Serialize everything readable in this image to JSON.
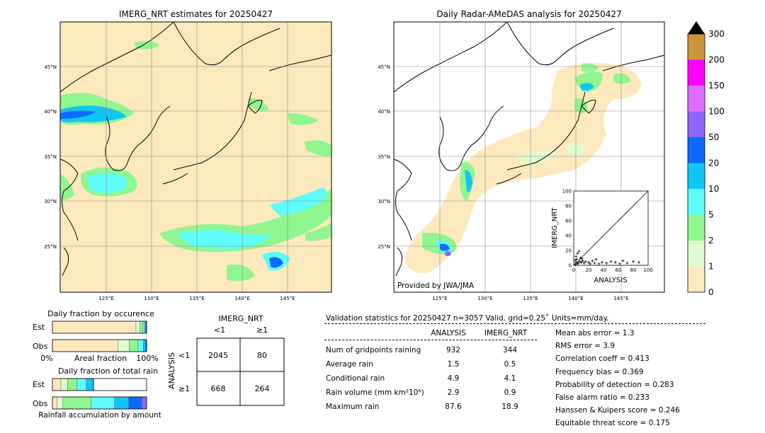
{
  "left_map": {
    "title": "IMERG_NRT estimates for 20250427",
    "lat_labels": [
      "45°N",
      "40°N",
      "35°N",
      "30°N",
      "25°N"
    ],
    "lon_labels": [
      "125°E",
      "130°E",
      "135°E",
      "140°E",
      "145°E"
    ]
  },
  "right_map": {
    "title": "Daily Radar-AMeDAS analysis for 20250427",
    "lat_labels": [
      "45°N",
      "40°N",
      "35°N",
      "30°N",
      "25°N"
    ],
    "lon_labels": [
      "125°E",
      "130°E",
      "135°E",
      "140°E",
      "145°E"
    ],
    "credit": "Provided by JWA/JMA"
  },
  "colorbar": {
    "levels": [
      "0",
      "1",
      "2",
      "5",
      "10",
      "20",
      "50",
      "100",
      "150",
      "200",
      "300"
    ],
    "colors": [
      "#fde9bd",
      "#e0fbcf",
      "#90f58f",
      "#5efcf9",
      "#10c5f7",
      "#0b6bff",
      "#8c66ff",
      "#de6cff",
      "#ff00ff",
      "#cb953b"
    ]
  },
  "chart_data": [
    {
      "type": "scatter",
      "title": "",
      "xlabel": "ANALYSIS",
      "ylabel": "IMERG_NRT",
      "xlim": [
        0,
        100
      ],
      "ylim": [
        0,
        100
      ],
      "ticks": [
        "0",
        "20",
        "40",
        "60",
        "80",
        "100"
      ],
      "points": [
        [
          2,
          1
        ],
        [
          3,
          4
        ],
        [
          5,
          2
        ],
        [
          4,
          8
        ],
        [
          6,
          3
        ],
        [
          8,
          5
        ],
        [
          10,
          4
        ],
        [
          12,
          6
        ],
        [
          9,
          10
        ],
        [
          14,
          3
        ],
        [
          16,
          5
        ],
        [
          20,
          4
        ],
        [
          22,
          2
        ],
        [
          25,
          6
        ],
        [
          28,
          3
        ],
        [
          30,
          8
        ],
        [
          34,
          2
        ],
        [
          38,
          4
        ],
        [
          44,
          3
        ],
        [
          50,
          5
        ],
        [
          56,
          4
        ],
        [
          62,
          2
        ],
        [
          66,
          6
        ],
        [
          72,
          3
        ],
        [
          80,
          5
        ],
        [
          87.6,
          4
        ],
        [
          3,
          12
        ],
        [
          5,
          16
        ],
        [
          7,
          18.9
        ],
        [
          2,
          7
        ],
        [
          11,
          9
        ]
      ]
    },
    {
      "type": "bar",
      "title": "Daily fraction by occurence",
      "xlabel": "Areal fraction",
      "xlim_labels": [
        "0%",
        "100%"
      ],
      "categories": [
        "Est",
        "Obs"
      ],
      "est_fractions": [
        0.887,
        0.042,
        0.03,
        0.021,
        0.013,
        0.007
      ],
      "obs_fractions": [
        0.695,
        0.12,
        0.095,
        0.055,
        0.025,
        0.01
      ],
      "colors": [
        "#fde9bd",
        "#e0fbcf",
        "#90f58f",
        "#5efcf9",
        "#10c5f7",
        "#0b6bff"
      ]
    },
    {
      "type": "bar",
      "title": "Daily fraction of total rain",
      "xlabel": "Rainfall accumulation by amount",
      "categories": [
        "Est",
        "Obs"
      ],
      "est_fractions": [
        0.09,
        0.07,
        0.1,
        0.1,
        0.07,
        0.01
      ],
      "obs_fractions": [
        0.05,
        0.06,
        0.3,
        0.25,
        0.15,
        0.14,
        0.05
      ],
      "colors": [
        "#fde9bd",
        "#e0fbcf",
        "#90f58f",
        "#5efcf9",
        "#10c5f7",
        "#0b6bff",
        "#8c66ff"
      ]
    }
  ],
  "contingency": {
    "col_title": "IMERG_NRT",
    "row_title": "ANALYSIS",
    "col_labels": [
      "<1",
      "≥1"
    ],
    "row_labels": [
      "<1",
      "≥1"
    ],
    "cells": [
      [
        "2045",
        "80"
      ],
      [
        "668",
        "264"
      ]
    ]
  },
  "validation": {
    "header": "Validation statistics for 20250427  n=3057 Valid. grid=0.25˚ Units=mm/day.",
    "col_analysis": "ANALYSIS",
    "col_imerg": "IMERG_NRT",
    "rows": [
      {
        "label": "Num of gridpoints raining",
        "analysis": "932",
        "imerg": "344"
      },
      {
        "label": "Average rain",
        "analysis": "1.5",
        "imerg": "0.5"
      },
      {
        "label": "Conditional rain",
        "analysis": "4.9",
        "imerg": "4.1"
      },
      {
        "label": "Rain volume (mm km²10⁶)",
        "analysis": "2.9",
        "imerg": "0.9"
      },
      {
        "label": "Maximum rain",
        "analysis": "87.6",
        "imerg": "18.9"
      }
    ],
    "scores": [
      "Mean abs error =    1.3",
      "RMS error =    3.9",
      "Correlation coeff =  0.413",
      "Frequency bias =  0.369",
      "Probability of detection =  0.283",
      "False alarm ratio =  0.233",
      "Hanssen & Kuipers score =  0.246",
      "Equitable threat score =  0.175"
    ]
  }
}
